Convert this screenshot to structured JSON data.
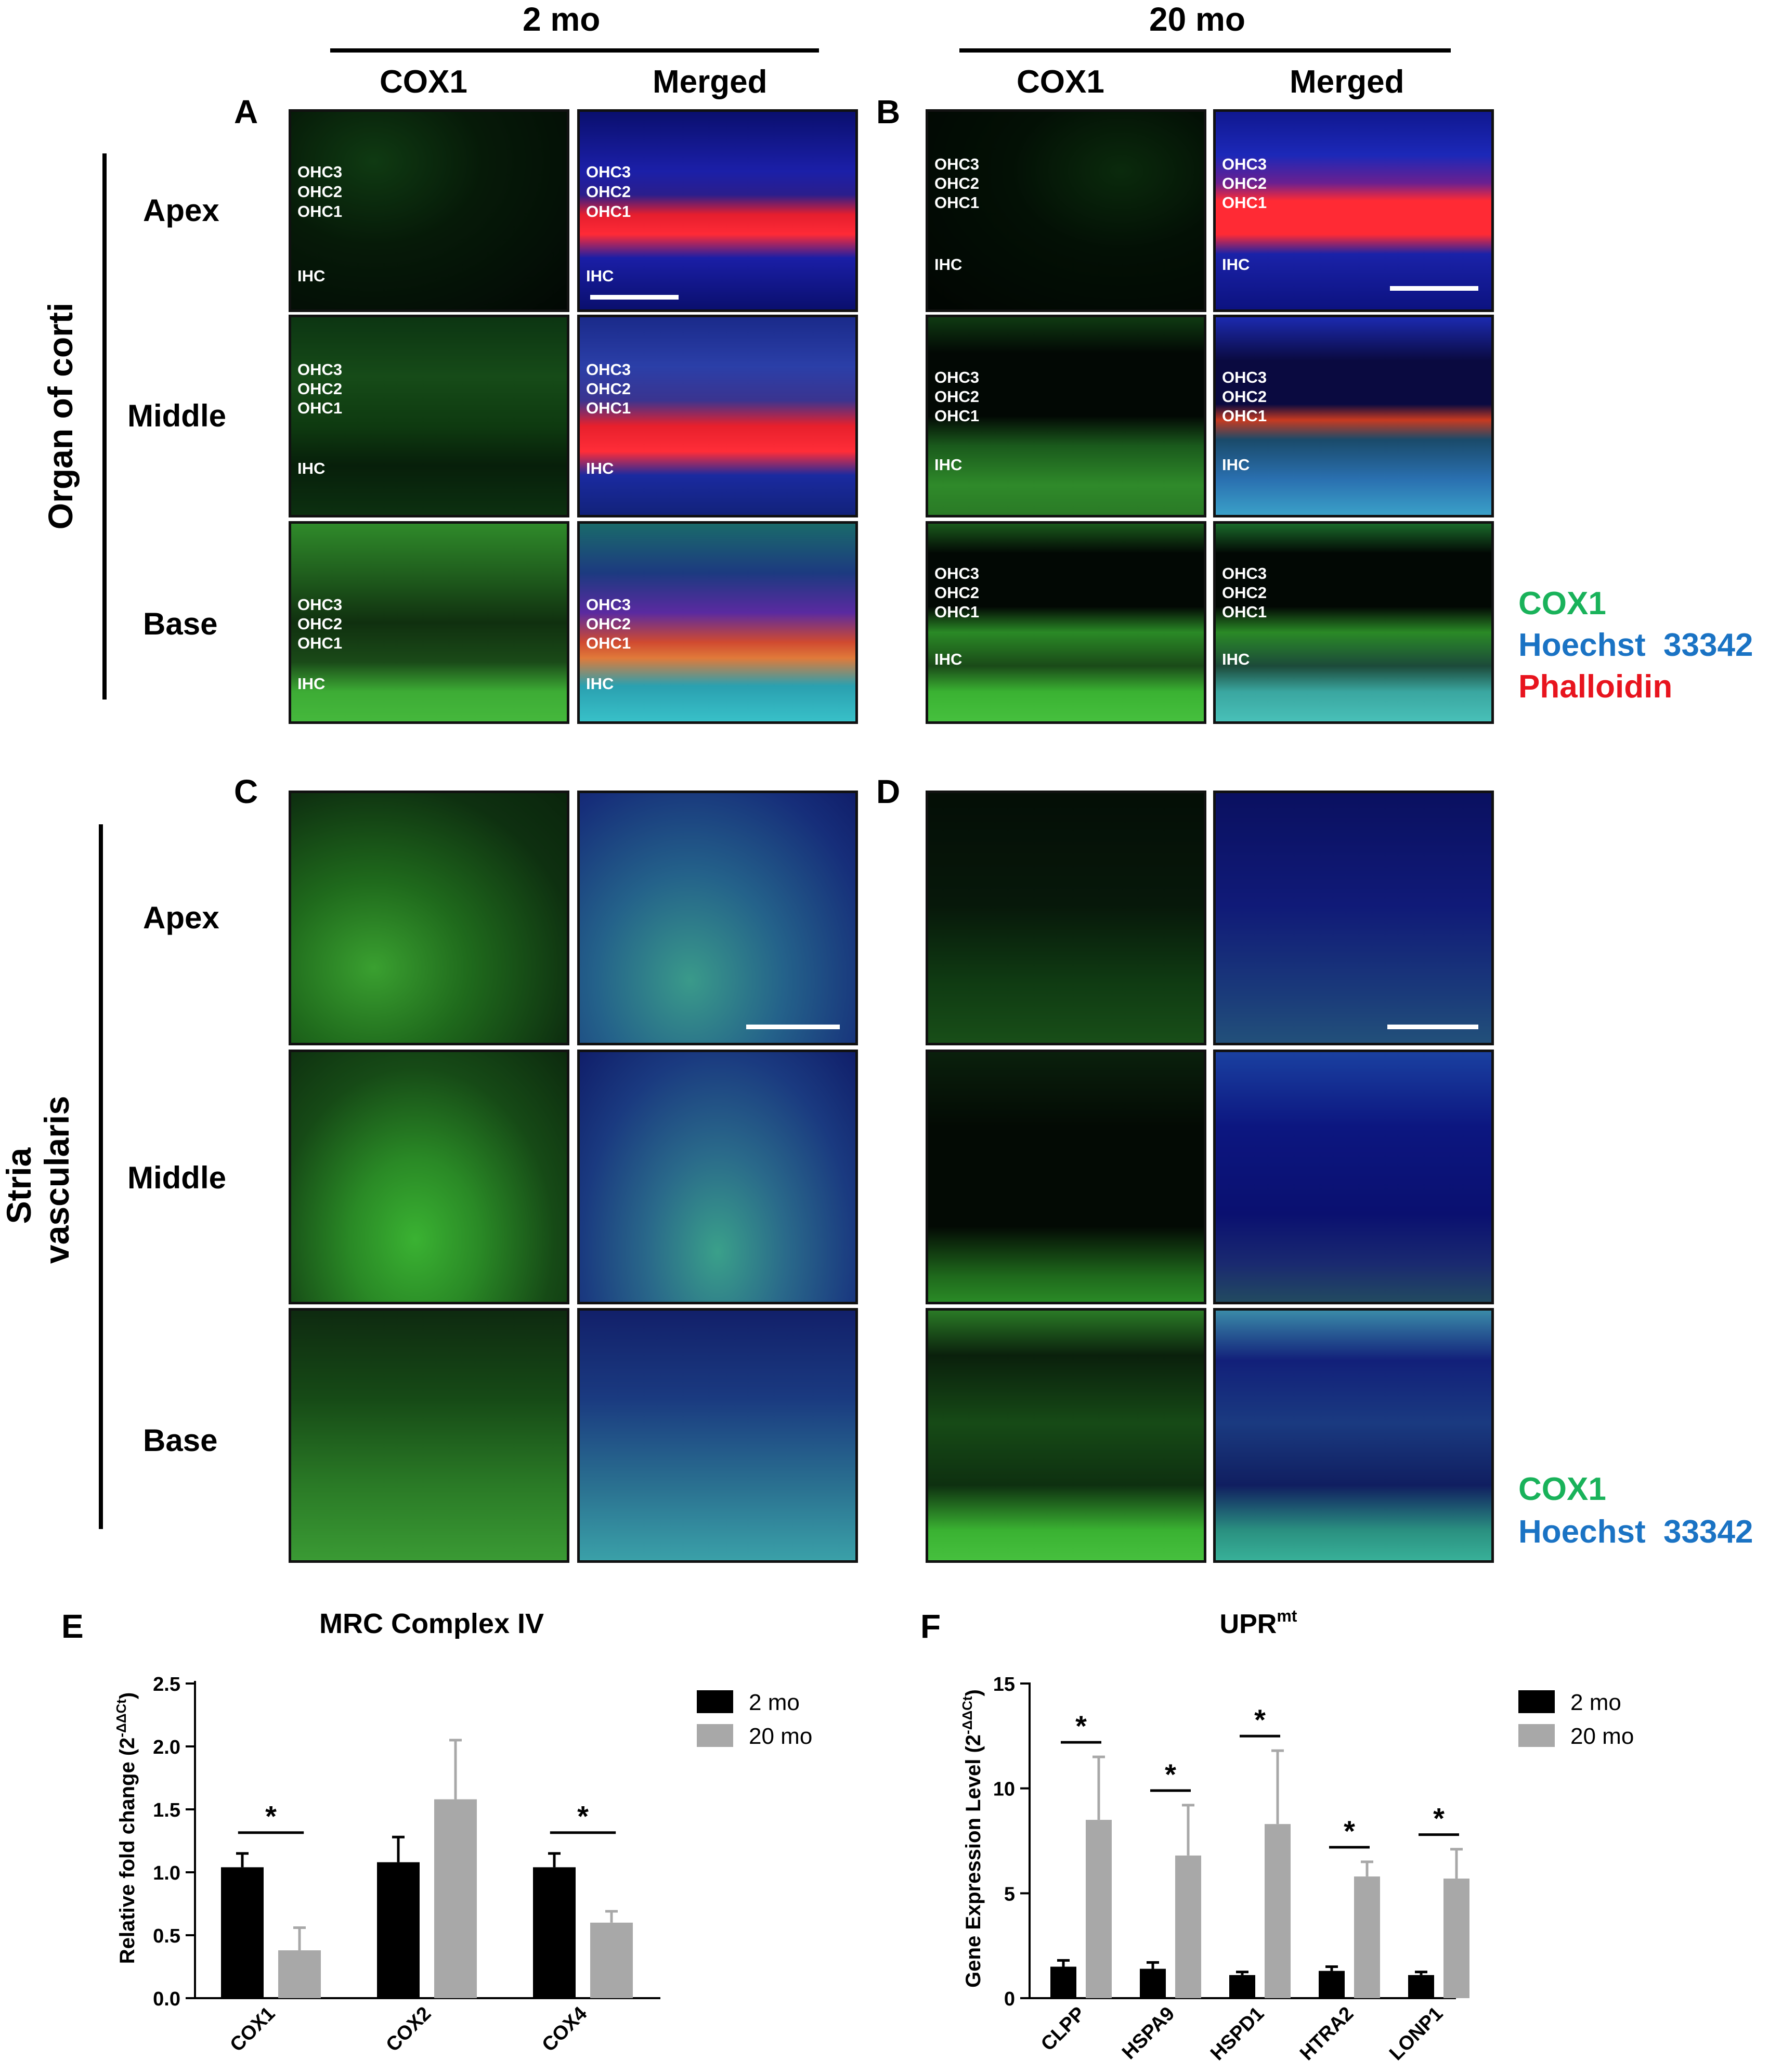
{
  "ages": {
    "young": "2 mo",
    "old": "20 mo"
  },
  "columns": {
    "cox1": "COX1",
    "merged": "Merged"
  },
  "panels": {
    "A": "A",
    "B": "B",
    "C": "C",
    "D": "D",
    "E": "E",
    "F": "F"
  },
  "rows": {
    "apex": "Apex",
    "middle": "Middle",
    "base": "Base"
  },
  "groups": {
    "organ": "Organ of corti",
    "stria_line1": "Stria",
    "stria_line2": "vascularis"
  },
  "cells": {
    "ohc3": "OHC3",
    "ohc2": "OHC2",
    "ohc1": "OHC1",
    "ihc": "IHC"
  },
  "legend_top": {
    "cox1": "COX1",
    "hoechst": "Hoechst  33342",
    "phalloidin": "Phalloidin"
  },
  "legend_mid": {
    "cox1": "COX1",
    "hoechst": "Hoechst  33342"
  },
  "colors": {
    "cox1": "#19b25a",
    "hoechst": "#1a73c4",
    "phalloidin": "#e8141e",
    "black_bar": "#000000",
    "gray_bar": "#a8a8a8"
  },
  "chart_data": [
    {
      "type": "bar",
      "panel": "E",
      "title": "MRC Complex IV",
      "ylabel": "Relative fold change (2^-ΔΔCt)",
      "ylabel_main": "Relative fold change (2",
      "ylabel_sup": "-ΔΔCt",
      "ylabel_close": ")",
      "categories": [
        "COX1",
        "COX2",
        "COX4"
      ],
      "ylim": [
        0,
        2.5
      ],
      "yticks": [
        "0.0",
        "0.5",
        "1.0",
        "1.5",
        "2.0",
        "2.5"
      ],
      "series": [
        {
          "name": "2 mo",
          "values": [
            1.04,
            1.08,
            1.04
          ],
          "errors": [
            0.11,
            0.2,
            0.11
          ]
        },
        {
          "name": "20 mo",
          "values": [
            0.38,
            1.58,
            0.6
          ],
          "errors": [
            0.18,
            0.47,
            0.09
          ]
        }
      ],
      "significance": [
        "*",
        "",
        "*"
      ]
    },
    {
      "type": "bar",
      "panel": "F",
      "title_main": "UPR",
      "title_sup": "mt",
      "ylabel_main": "Gene Expression Level (2",
      "ylabel_sup": "-ΔΔCt",
      "ylabel_close": ")",
      "categories": [
        "CLPP",
        "HSPA9",
        "HSPD1",
        "HTRA2",
        "LONP1"
      ],
      "ylim": [
        0,
        15
      ],
      "yticks": [
        "0",
        "5",
        "10",
        "15"
      ],
      "series": [
        {
          "name": "2 mo",
          "values": [
            1.5,
            1.4,
            1.1,
            1.3,
            1.1
          ],
          "errors": [
            0.3,
            0.3,
            0.15,
            0.2,
            0.15
          ]
        },
        {
          "name": "20 mo",
          "values": [
            8.5,
            6.8,
            8.3,
            5.8,
            5.7
          ],
          "errors": [
            3.0,
            2.4,
            3.5,
            0.7,
            1.4
          ]
        }
      ],
      "significance": [
        "*",
        "*",
        "*",
        "*",
        "*"
      ]
    }
  ]
}
